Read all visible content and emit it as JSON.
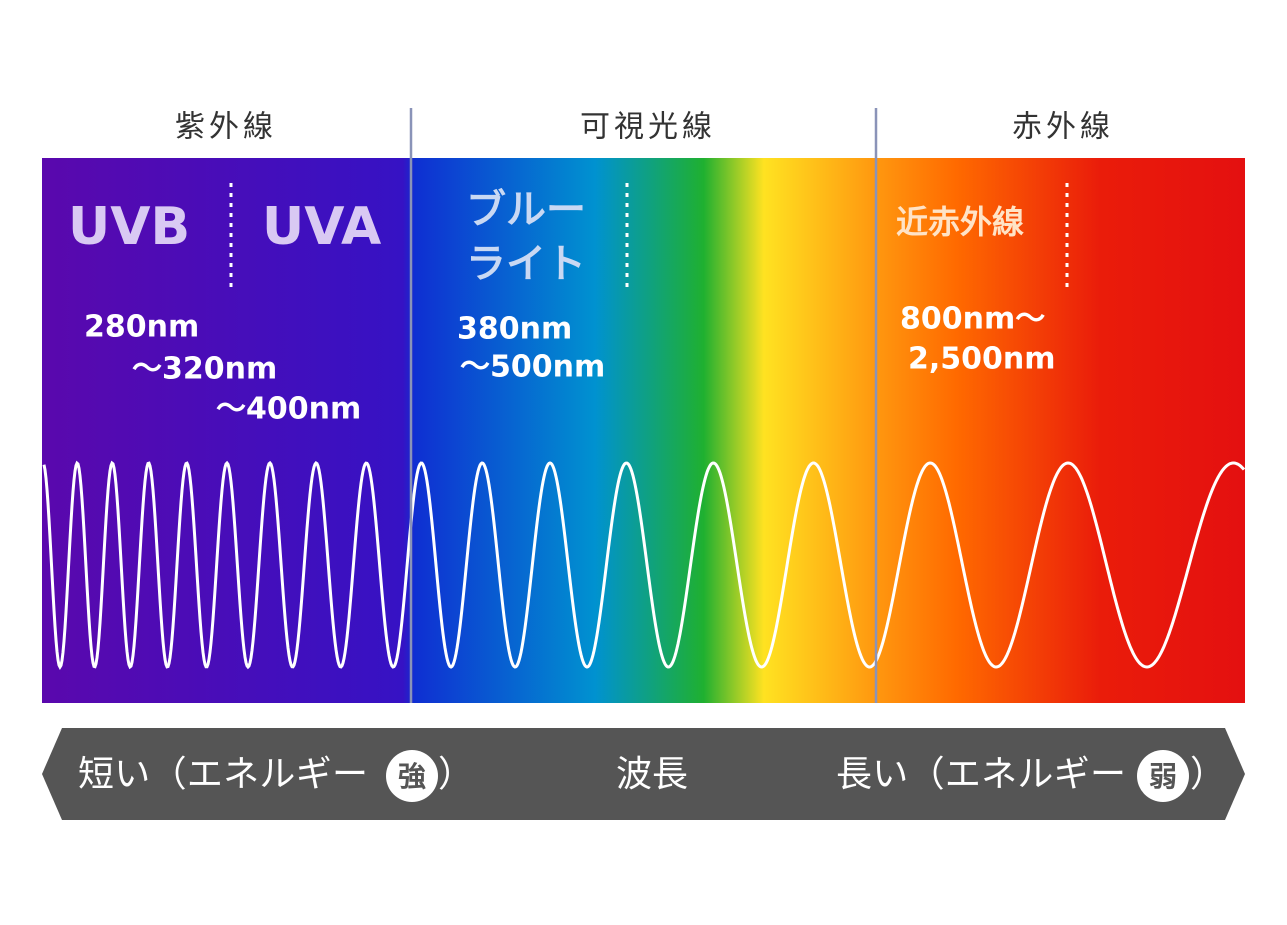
{
  "section_labels": [
    "紫外線",
    "可視光線",
    "赤外線"
  ],
  "bands": {
    "uvb": "UVB",
    "uva": "UVA",
    "blue_light": [
      "ブルー",
      "ライト"
    ],
    "near_infrared": "近赤外線"
  },
  "ranges": {
    "uv": [
      "280nm",
      "〜320nm",
      "〜400nm"
    ],
    "blue_light": [
      "380nm",
      "〜500nm"
    ],
    "near_infrared": [
      "800nm〜",
      "2,500nm"
    ]
  },
  "axis": {
    "short": "短い（エネルギー",
    "strong": "強",
    "close_left": "）",
    "center": "波長",
    "long": "長い（エネルギー",
    "weak": "弱",
    "close_right": "）"
  }
}
